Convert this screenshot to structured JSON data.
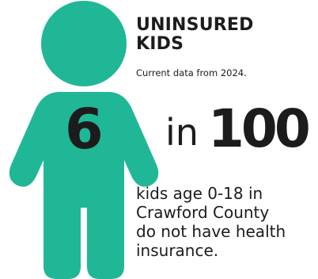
{
  "colors": {
    "figure": "#20b796",
    "text": "#1c1c1c",
    "background": "#ffffff"
  },
  "figure_icon": "child-figure-icon",
  "title": {
    "line1": "UNINSURED",
    "line2": "KIDS"
  },
  "subtitle": "Current data from 2024.",
  "stat": {
    "count": "6",
    "connector": "in",
    "total": "100"
  },
  "description": {
    "line1": "kids age 0-18 in",
    "line2": "Crawford County",
    "line3": "do not have health",
    "line4": "insurance."
  }
}
